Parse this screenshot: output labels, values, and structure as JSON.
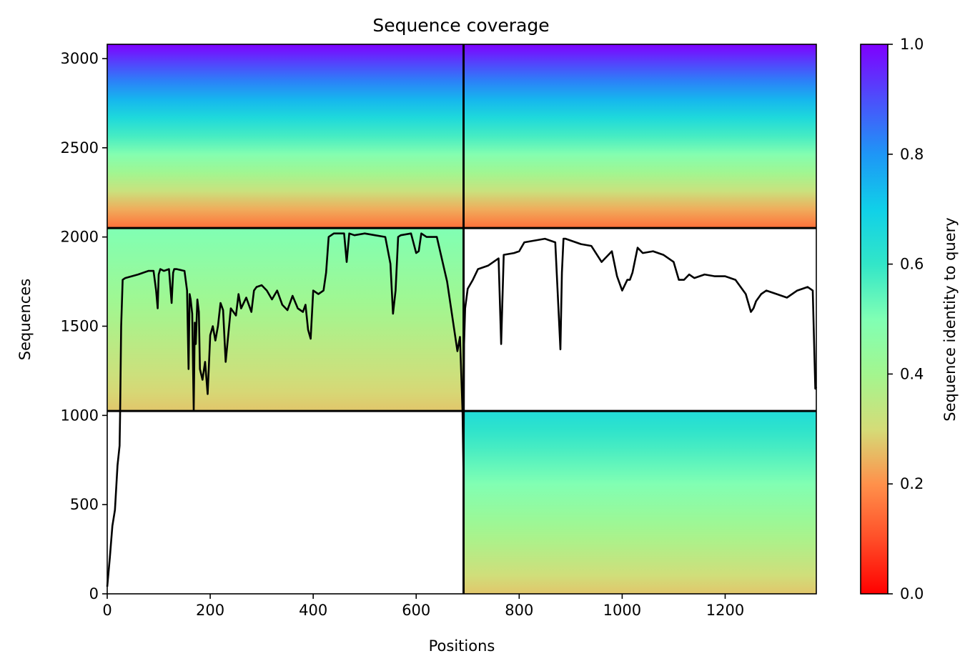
{
  "chart_data": {
    "type": "heatmap",
    "title": "Sequence coverage",
    "xlabel": "Positions",
    "ylabel": "Sequences",
    "xlim": [
      0,
      1377
    ],
    "ylim": [
      0,
      3080
    ],
    "x_ticks": [
      0,
      200,
      400,
      600,
      800,
      1000,
      1200
    ],
    "y_ticks": [
      0,
      500,
      1000,
      1500,
      2000,
      2500,
      3000
    ],
    "colorbar": {
      "label": "Sequence identity to query",
      "colormap": "rainbow_r",
      "range": [
        0.0,
        1.0
      ],
      "ticks": [
        "0.0",
        "0.2",
        "0.4",
        "0.6",
        "0.8",
        "1.0"
      ]
    },
    "block_dividers": {
      "x": [
        692
      ],
      "y": [
        1025,
        2050
      ]
    },
    "blocks": [
      {
        "x": [
          0,
          692
        ],
        "y": [
          2050,
          3080
        ],
        "identity_top": 1.0,
        "identity_bottom": 0.15
      },
      {
        "x": [
          692,
          1377
        ],
        "y": [
          2050,
          3080
        ],
        "identity_top": 1.0,
        "identity_bottom": 0.15
      },
      {
        "x": [
          0,
          692
        ],
        "y": [
          1025,
          2050
        ],
        "identity_top": 0.5,
        "identity_bottom": 0.27
      },
      {
        "x": [
          692,
          1377
        ],
        "y": [
          1025,
          2050
        ],
        "identity_top": null,
        "identity_bottom": null
      },
      {
        "x": [
          0,
          692
        ],
        "y": [
          0,
          1025
        ],
        "identity_top": null,
        "identity_bottom": null
      },
      {
        "x": [
          692,
          1377
        ],
        "y": [
          0,
          1025
        ],
        "identity_top": 0.65,
        "identity_bottom": 0.27
      }
    ],
    "coverage_line": {
      "color": "#000000",
      "x": [
        0,
        5,
        10,
        15,
        20,
        24,
        25,
        27,
        30,
        35,
        60,
        80,
        90,
        95,
        98,
        100,
        103,
        110,
        120,
        125,
        128,
        130,
        135,
        150,
        155,
        158,
        160,
        162,
        165,
        168,
        170,
        172,
        175,
        178,
        180,
        185,
        190,
        195,
        200,
        205,
        210,
        215,
        220,
        225,
        230,
        240,
        250,
        255,
        260,
        270,
        280,
        285,
        290,
        300,
        310,
        320,
        330,
        340,
        350,
        360,
        370,
        380,
        385,
        390,
        395,
        400,
        410,
        420,
        425,
        430,
        440,
        460,
        465,
        470,
        480,
        500,
        520,
        540,
        550,
        555,
        560,
        565,
        570,
        590,
        600,
        605,
        610,
        620,
        640,
        660,
        680,
        685,
        690,
        692,
        693,
        695,
        700,
        710,
        720,
        740,
        760,
        765,
        770,
        790,
        800,
        810,
        830,
        850,
        870,
        880,
        883,
        886,
        890,
        900,
        920,
        940,
        960,
        980,
        990,
        1000,
        1010,
        1015,
        1020,
        1030,
        1040,
        1060,
        1080,
        1100,
        1110,
        1120,
        1130,
        1140,
        1160,
        1180,
        1200,
        1220,
        1240,
        1250,
        1255,
        1260,
        1270,
        1280,
        1300,
        1320,
        1340,
        1360,
        1370,
        1375,
        1377
      ],
      "y": [
        40,
        200,
        380,
        470,
        720,
        830,
        1000,
        1500,
        1760,
        1770,
        1790,
        1810,
        1810,
        1700,
        1600,
        1790,
        1820,
        1810,
        1820,
        1630,
        1800,
        1820,
        1820,
        1810,
        1700,
        1260,
        1680,
        1650,
        1570,
        1030,
        1520,
        1400,
        1650,
        1580,
        1260,
        1200,
        1300,
        1120,
        1450,
        1500,
        1420,
        1500,
        1630,
        1590,
        1300,
        1600,
        1560,
        1680,
        1600,
        1660,
        1580,
        1700,
        1720,
        1730,
        1700,
        1650,
        1700,
        1620,
        1590,
        1670,
        1600,
        1580,
        1620,
        1480,
        1430,
        1700,
        1680,
        1700,
        1800,
        2000,
        2020,
        2020,
        1860,
        2020,
        2010,
        2020,
        2010,
        2000,
        1850,
        1570,
        1700,
        2000,
        2010,
        2020,
        1910,
        1920,
        2020,
        2000,
        2000,
        1750,
        1360,
        1440,
        1020,
        650,
        1400,
        1600,
        1710,
        1760,
        1820,
        1840,
        1880,
        1400,
        1900,
        1910,
        1920,
        1970,
        1980,
        1990,
        1970,
        1370,
        1800,
        1990,
        1990,
        1980,
        1960,
        1950,
        1860,
        1920,
        1780,
        1700,
        1760,
        1760,
        1800,
        1940,
        1910,
        1920,
        1900,
        1860,
        1760,
        1760,
        1790,
        1770,
        1790,
        1780,
        1780,
        1760,
        1680,
        1580,
        1600,
        1640,
        1680,
        1700,
        1680,
        1660,
        1700,
        1720,
        1700,
        1150,
        1160
      ]
    }
  }
}
